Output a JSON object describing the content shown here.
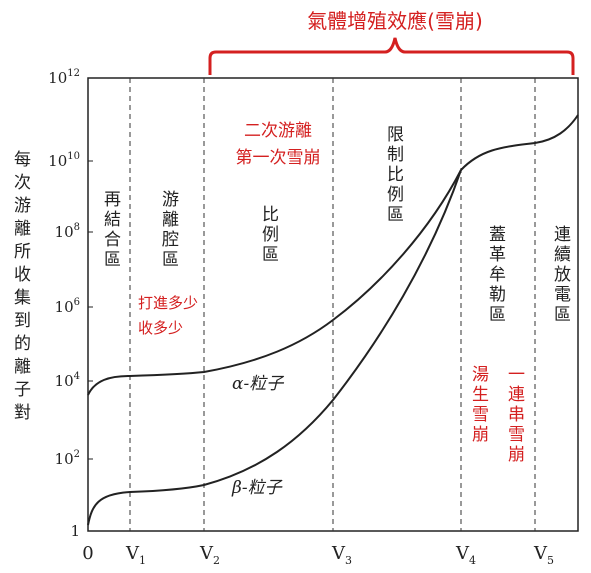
{
  "title": "氣體增殖效應(雪崩)",
  "y_axis_label": "每次游離所收集到的離子對",
  "y_ticks": [
    {
      "base": "10",
      "exp": "12"
    },
    {
      "base": "10",
      "exp": "10"
    },
    {
      "base": "10",
      "exp": "8"
    },
    {
      "base": "10",
      "exp": "6"
    },
    {
      "base": "10",
      "exp": "4"
    },
    {
      "base": "10",
      "exp": "2"
    },
    {
      "base": "1"
    }
  ],
  "x_ticks": [
    {
      "base": "0"
    },
    {
      "base": "V",
      "sub": "1"
    },
    {
      "base": "V",
      "sub": "2"
    },
    {
      "base": "V",
      "sub": "3"
    },
    {
      "base": "V",
      "sub": "4"
    },
    {
      "base": "V",
      "sub": "5"
    }
  ],
  "regions": [
    "再結合區",
    "游離腔區",
    "比例區",
    "限制比例區",
    "蓋革牟勒區",
    "連續放電區"
  ],
  "curves": [
    "α-粒子",
    "β-粒子"
  ],
  "annotations": [
    "二次游離",
    "第一次雪崩",
    "打進多少",
    "收多少",
    "湯生雪崩",
    "一連串雪崩"
  ]
}
